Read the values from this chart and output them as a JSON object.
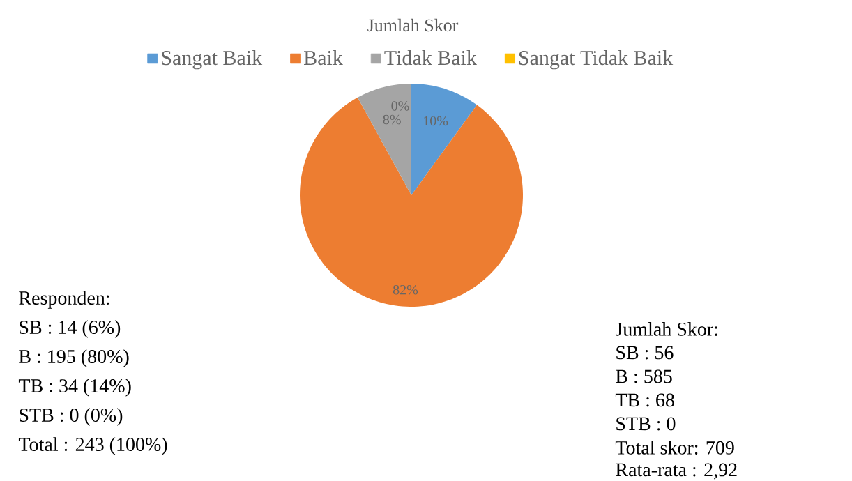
{
  "chart_data": {
    "type": "pie",
    "title": "Jumlah Skor",
    "categories": [
      "Sangat Baik",
      "Baik",
      "Tidak Baik",
      "Sangat Tidak Baik"
    ],
    "values": [
      10,
      82,
      8,
      0
    ],
    "value_labels": [
      "10%",
      "82%",
      "8%",
      "0%"
    ],
    "colors": [
      "#5b9bd5",
      "#ed7d31",
      "#a5a5a5",
      "#ffc000"
    ],
    "legend": "top",
    "annotations": [
      "Responden:",
      "SB : 14 (6%)",
      "B : 195 (80%)",
      "TB : 34 (14%)",
      "STB : 0 (0%)",
      "Total : 243 (100%)",
      "Jumlah Skor:",
      "SB : 56",
      "B : 585",
      "TB : 68",
      "STB : 0",
      "Total skor: 709",
      "Rata-rata : 2,92"
    ]
  }
}
